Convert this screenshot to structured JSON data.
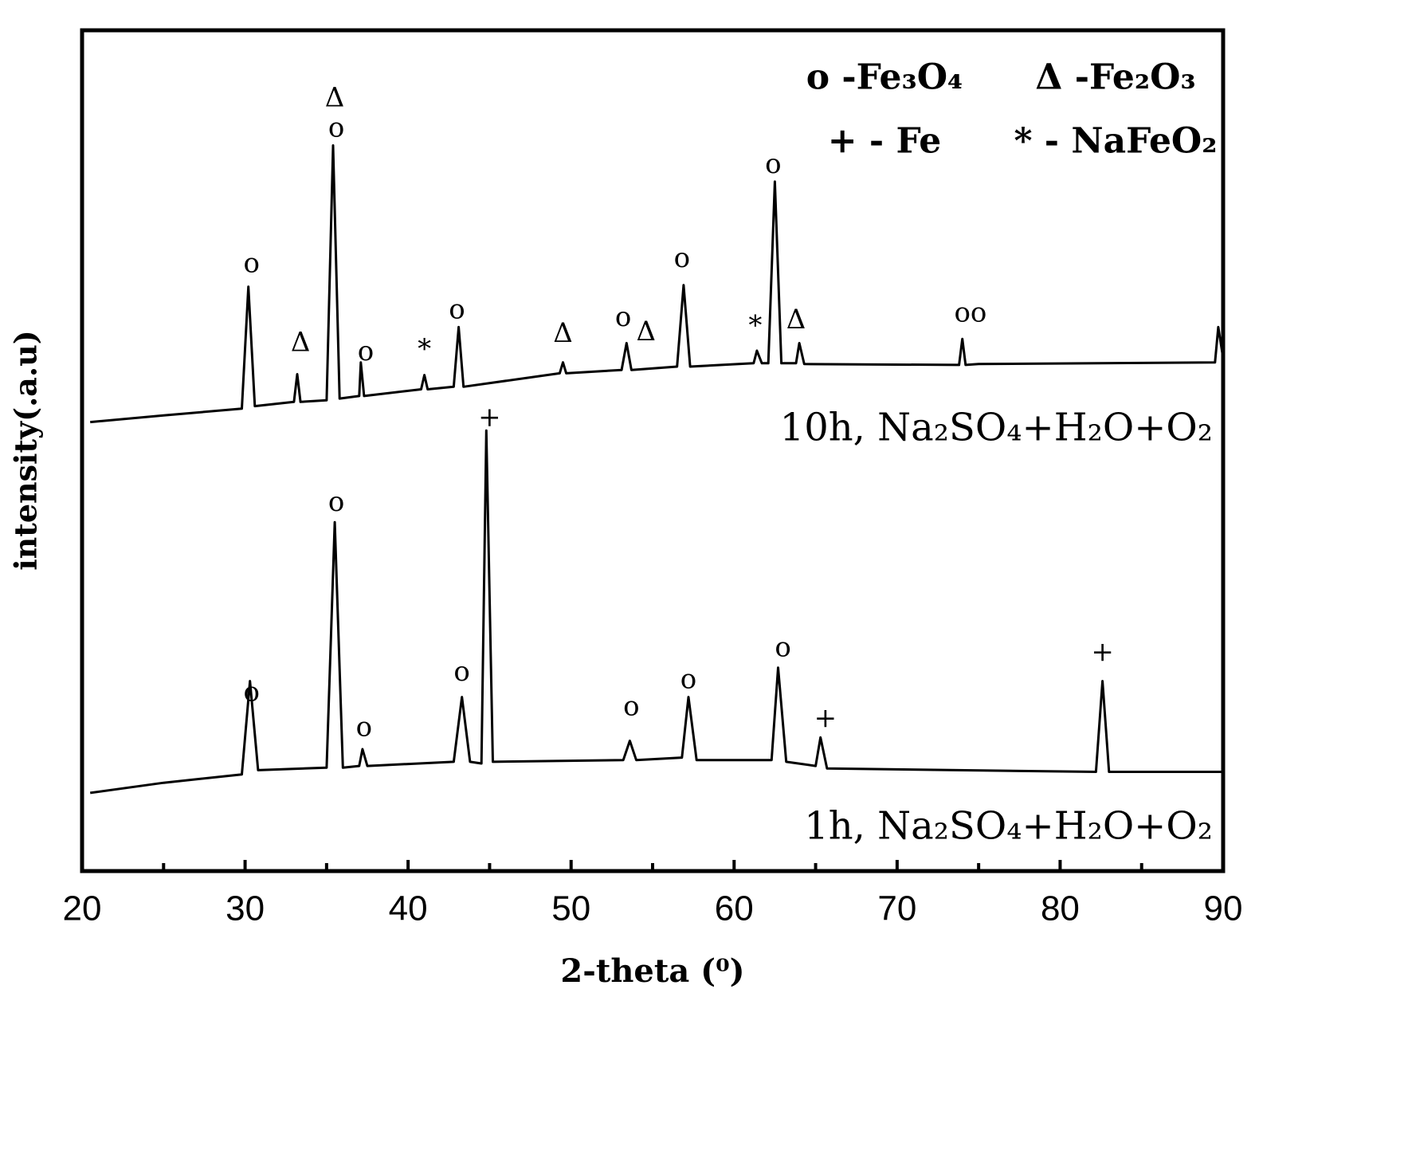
{
  "chart_data": {
    "type": "line",
    "x_label": "2-theta (⁰)",
    "y_label": "intensity(.a.u)",
    "xlim": [
      20,
      90
    ],
    "ylim": [
      0,
      100
    ],
    "xticks": [
      20,
      30,
      40,
      50,
      60,
      70,
      80,
      90
    ],
    "xminorticks": [
      25,
      35,
      45,
      55,
      65,
      75,
      85
    ],
    "legend_entries": [
      "o -Fe₃O₄",
      "Δ -Fe₂O₃",
      "+ - Fe",
      "* - NaFeO₂"
    ],
    "series": [
      {
        "name": "10h, Na₂SO₄+H₂O+O₂",
        "color": "#000000",
        "x": [
          20.5,
          25,
          29.8,
          30.2,
          30.6,
          33,
          33.2,
          33.4,
          35,
          35.4,
          35.8,
          37,
          37.1,
          37.3,
          40.8,
          41,
          41.2,
          42.8,
          43.1,
          43.4,
          49.3,
          49.5,
          49.7,
          53.1,
          53.4,
          53.7,
          56.5,
          56.9,
          57.3,
          61.2,
          61.4,
          61.7,
          62.1,
          62.5,
          62.9,
          63.8,
          64,
          64.3,
          73.8,
          74,
          74.2,
          75,
          89.5,
          89.7,
          90
        ],
        "values": [
          53.4,
          54.2,
          55,
          69.5,
          55.3,
          55.8,
          59.1,
          55.8,
          56,
          86.3,
          56.2,
          56.5,
          60.5,
          56.5,
          57.3,
          59,
          57.3,
          57.6,
          64.7,
          57.6,
          59.2,
          60.5,
          59.2,
          59.6,
          62.8,
          59.6,
          60,
          69.7,
          60,
          60.4,
          61.9,
          60.4,
          60.4,
          82,
          60.4,
          60.4,
          62.8,
          60.3,
          60.2,
          63.3,
          60.2,
          60.3,
          60.5,
          64.7,
          61
        ]
      },
      {
        "name": "1h, Na₂SO₄+H₂O+O₂",
        "color": "#000000",
        "x": [
          20.5,
          25,
          29.8,
          30.3,
          30.8,
          35,
          35.5,
          36,
          37,
          37.2,
          37.5,
          42.8,
          43.3,
          43.8,
          44.5,
          44.8,
          45.2,
          53.2,
          53.6,
          54,
          56.8,
          57.2,
          57.7,
          62.3,
          62.7,
          63.2,
          65,
          65.3,
          65.7,
          82.2,
          82.6,
          83,
          90
        ],
        "values": [
          9.3,
          10.5,
          11.5,
          22.6,
          12,
          12.3,
          41.5,
          12.3,
          12.5,
          14.5,
          12.5,
          13,
          20.7,
          13,
          12.8,
          52.4,
          13,
          13.2,
          15.5,
          13.2,
          13.5,
          20.7,
          13.2,
          13.2,
          24.2,
          13,
          12.5,
          15.9,
          12.2,
          11.8,
          22.6,
          11.8,
          11.8
        ]
      }
    ],
    "annotations": [
      {
        "text": "Δ",
        "x": 35.5,
        "y": 91.8
      },
      {
        "text": "o",
        "x": 35.6,
        "y": 88.2
      },
      {
        "text": "o",
        "x": 30.4,
        "y": 72.1
      },
      {
        "text": "Δ",
        "x": 33.4,
        "y": 62.7
      },
      {
        "text": "o",
        "x": 37.4,
        "y": 61.6
      },
      {
        "text": "*",
        "x": 41.0,
        "y": 61.9
      },
      {
        "text": "o",
        "x": 43.0,
        "y": 66.6
      },
      {
        "text": "Δ",
        "x": 49.5,
        "y": 63.8
      },
      {
        "text": "o",
        "x": 53.2,
        "y": 65.7
      },
      {
        "text": "Δ",
        "x": 54.6,
        "y": 64.0
      },
      {
        "text": "o",
        "x": 56.8,
        "y": 72.7
      },
      {
        "text": "*",
        "x": 61.3,
        "y": 64.7
      },
      {
        "text": "o",
        "x": 62.4,
        "y": 83.9
      },
      {
        "text": "Δ",
        "x": 63.8,
        "y": 65.4
      },
      {
        "text": "oo",
        "x": 74.5,
        "y": 66.2
      },
      {
        "text": "+",
        "x": 45.0,
        "y": 53.8
      },
      {
        "text": "o",
        "x": 35.6,
        "y": 43.7
      },
      {
        "text": "o",
        "x": 30.4,
        "y": 21.1
      },
      {
        "text": "o",
        "x": 37.3,
        "y": 16.9
      },
      {
        "text": "o",
        "x": 43.3,
        "y": 23.5
      },
      {
        "text": "o",
        "x": 53.7,
        "y": 19.4
      },
      {
        "text": "o",
        "x": 57.2,
        "y": 22.6
      },
      {
        "text": "o",
        "x": 63.0,
        "y": 26.4
      },
      {
        "text": "+",
        "x": 65.6,
        "y": 18.0
      },
      {
        "text": "+",
        "x": 82.6,
        "y": 25.9
      }
    ]
  }
}
